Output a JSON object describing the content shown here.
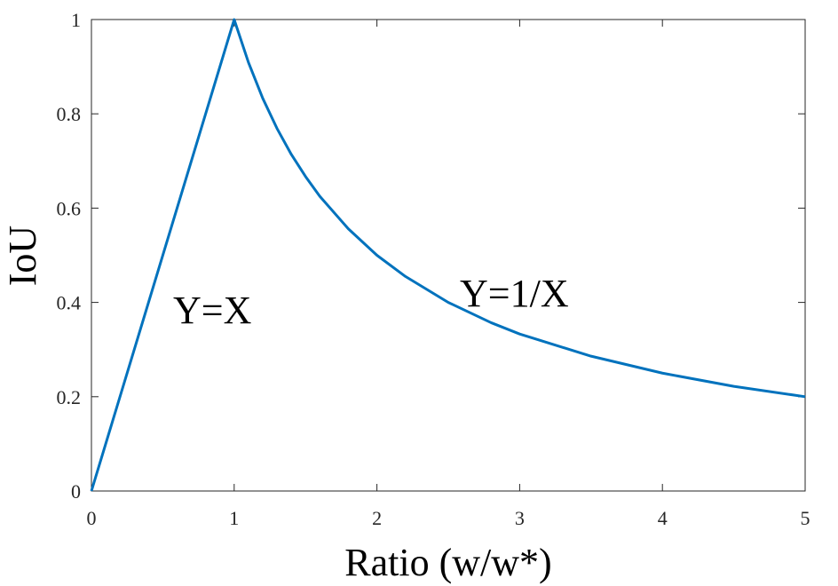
{
  "chart_data": {
    "type": "line",
    "xlabel": "Ratio (w/w*)",
    "ylabel": "IoU",
    "annotations": [
      "Y=X",
      "Y=1/X"
    ],
    "x": [
      0,
      1,
      1.1,
      1.2,
      1.3,
      1.4,
      1.5,
      1.6,
      1.8,
      2,
      2.2,
      2.5,
      2.8,
      3,
      3.5,
      4,
      4.5,
      5
    ],
    "series": [
      {
        "color": "#0072bd",
        "values": [
          0,
          1,
          0.909,
          0.833,
          0.769,
          0.714,
          0.667,
          0.625,
          0.556,
          0.5,
          0.455,
          0.4,
          0.357,
          0.333,
          0.286,
          0.25,
          0.222,
          0.2
        ]
      }
    ],
    "xlim": [
      0,
      5
    ],
    "ylim": [
      0,
      1
    ],
    "xticks": [
      0,
      1,
      2,
      3,
      4,
      5
    ],
    "yticks": [
      0,
      0.2,
      0.4,
      0.6,
      0.8,
      1
    ],
    "grid": false
  }
}
